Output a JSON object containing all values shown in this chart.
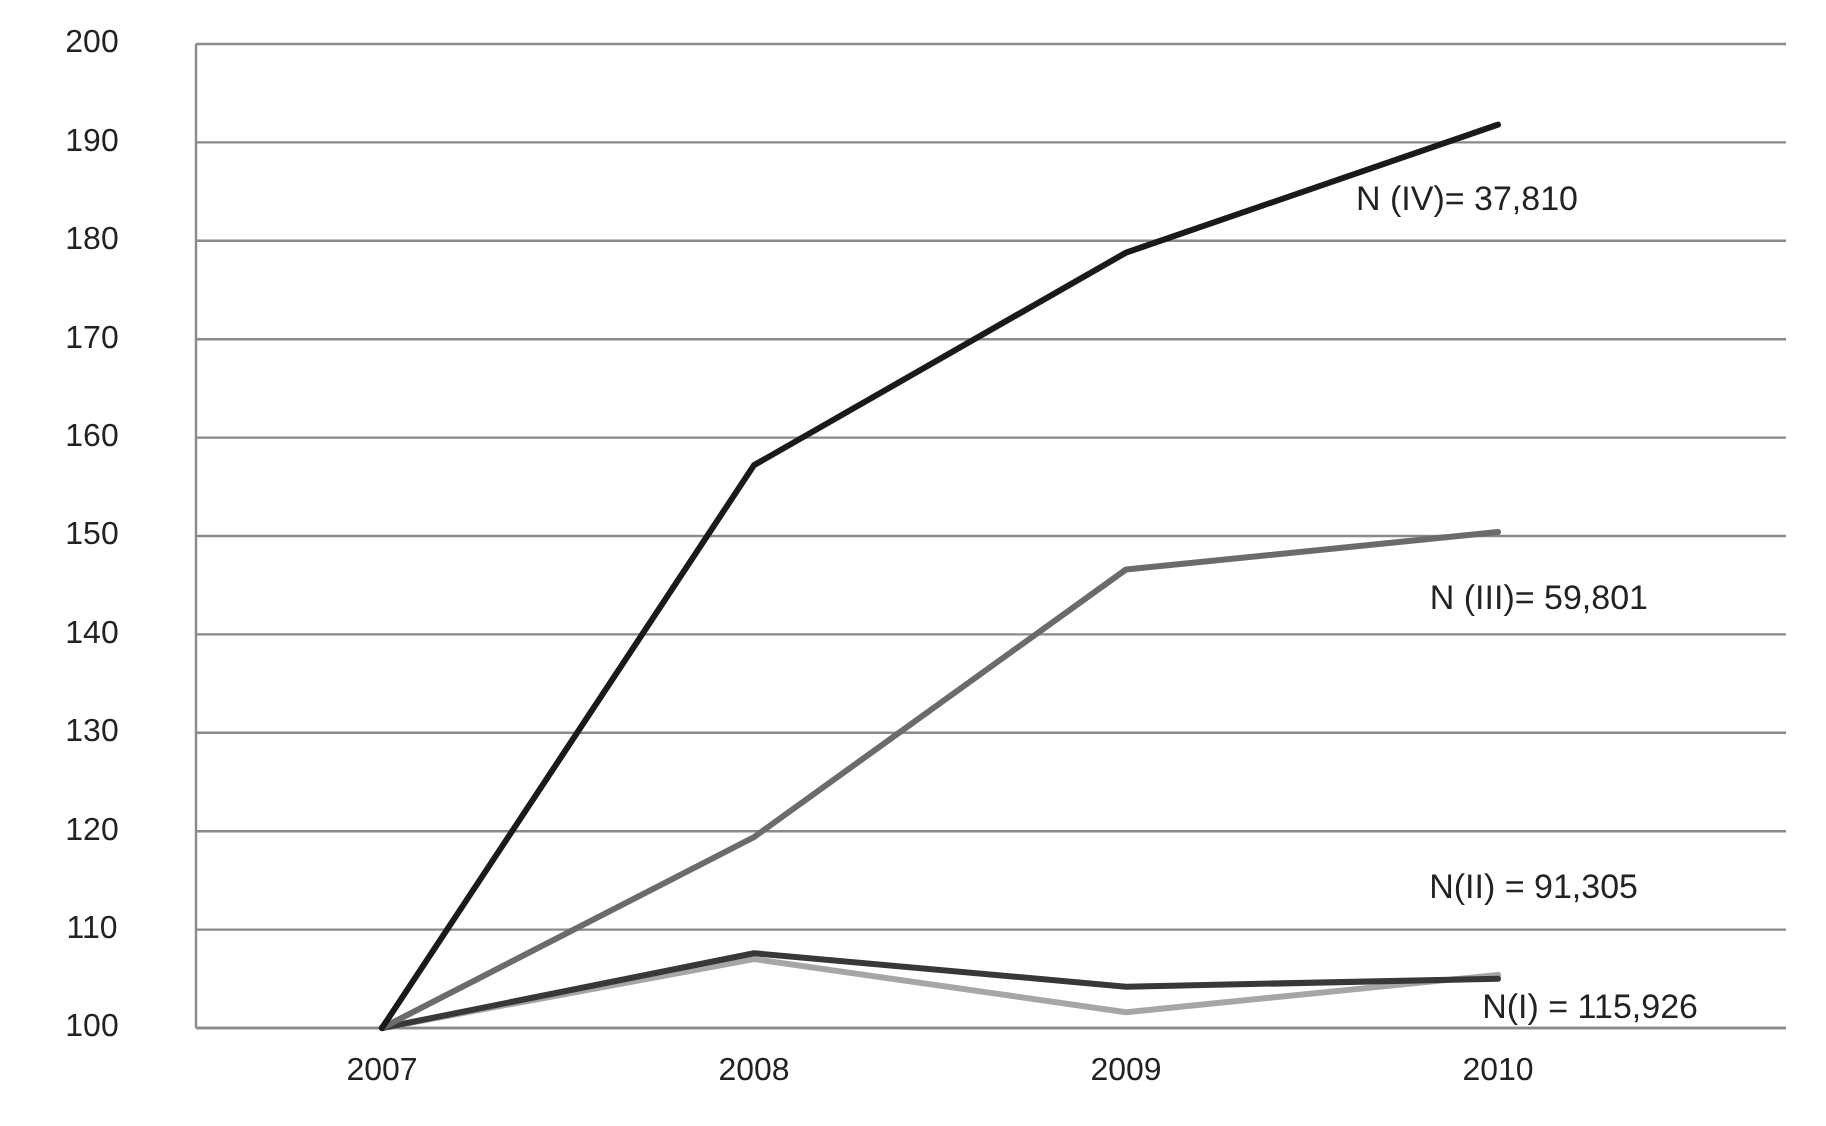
{
  "chart_data": {
    "type": "line",
    "categories": [
      "2007",
      "2008",
      "2009",
      "2010"
    ],
    "series": [
      {
        "name": "N(I) = 115,926",
        "color": "#a6a6a6",
        "values": [
          100,
          107,
          101.6,
          105.4
        ]
      },
      {
        "name": "N(II) =  91,305",
        "color": "#383838",
        "values": [
          100,
          107.6,
          104.2,
          105
        ]
      },
      {
        "name": "N  (III)= 59,801",
        "color": "#6b6b6b",
        "values": [
          100,
          119.4,
          146.6,
          150.4
        ]
      },
      {
        "name": "N (IV)= 37,810",
        "color": "#1a1a1a",
        "values": [
          100,
          157.2,
          178.8,
          191.8
        ]
      }
    ],
    "ylim": [
      100,
      200
    ],
    "yticks": [
      100,
      110,
      120,
      130,
      140,
      150,
      160,
      170,
      180,
      190,
      200
    ],
    "grid": "y"
  }
}
